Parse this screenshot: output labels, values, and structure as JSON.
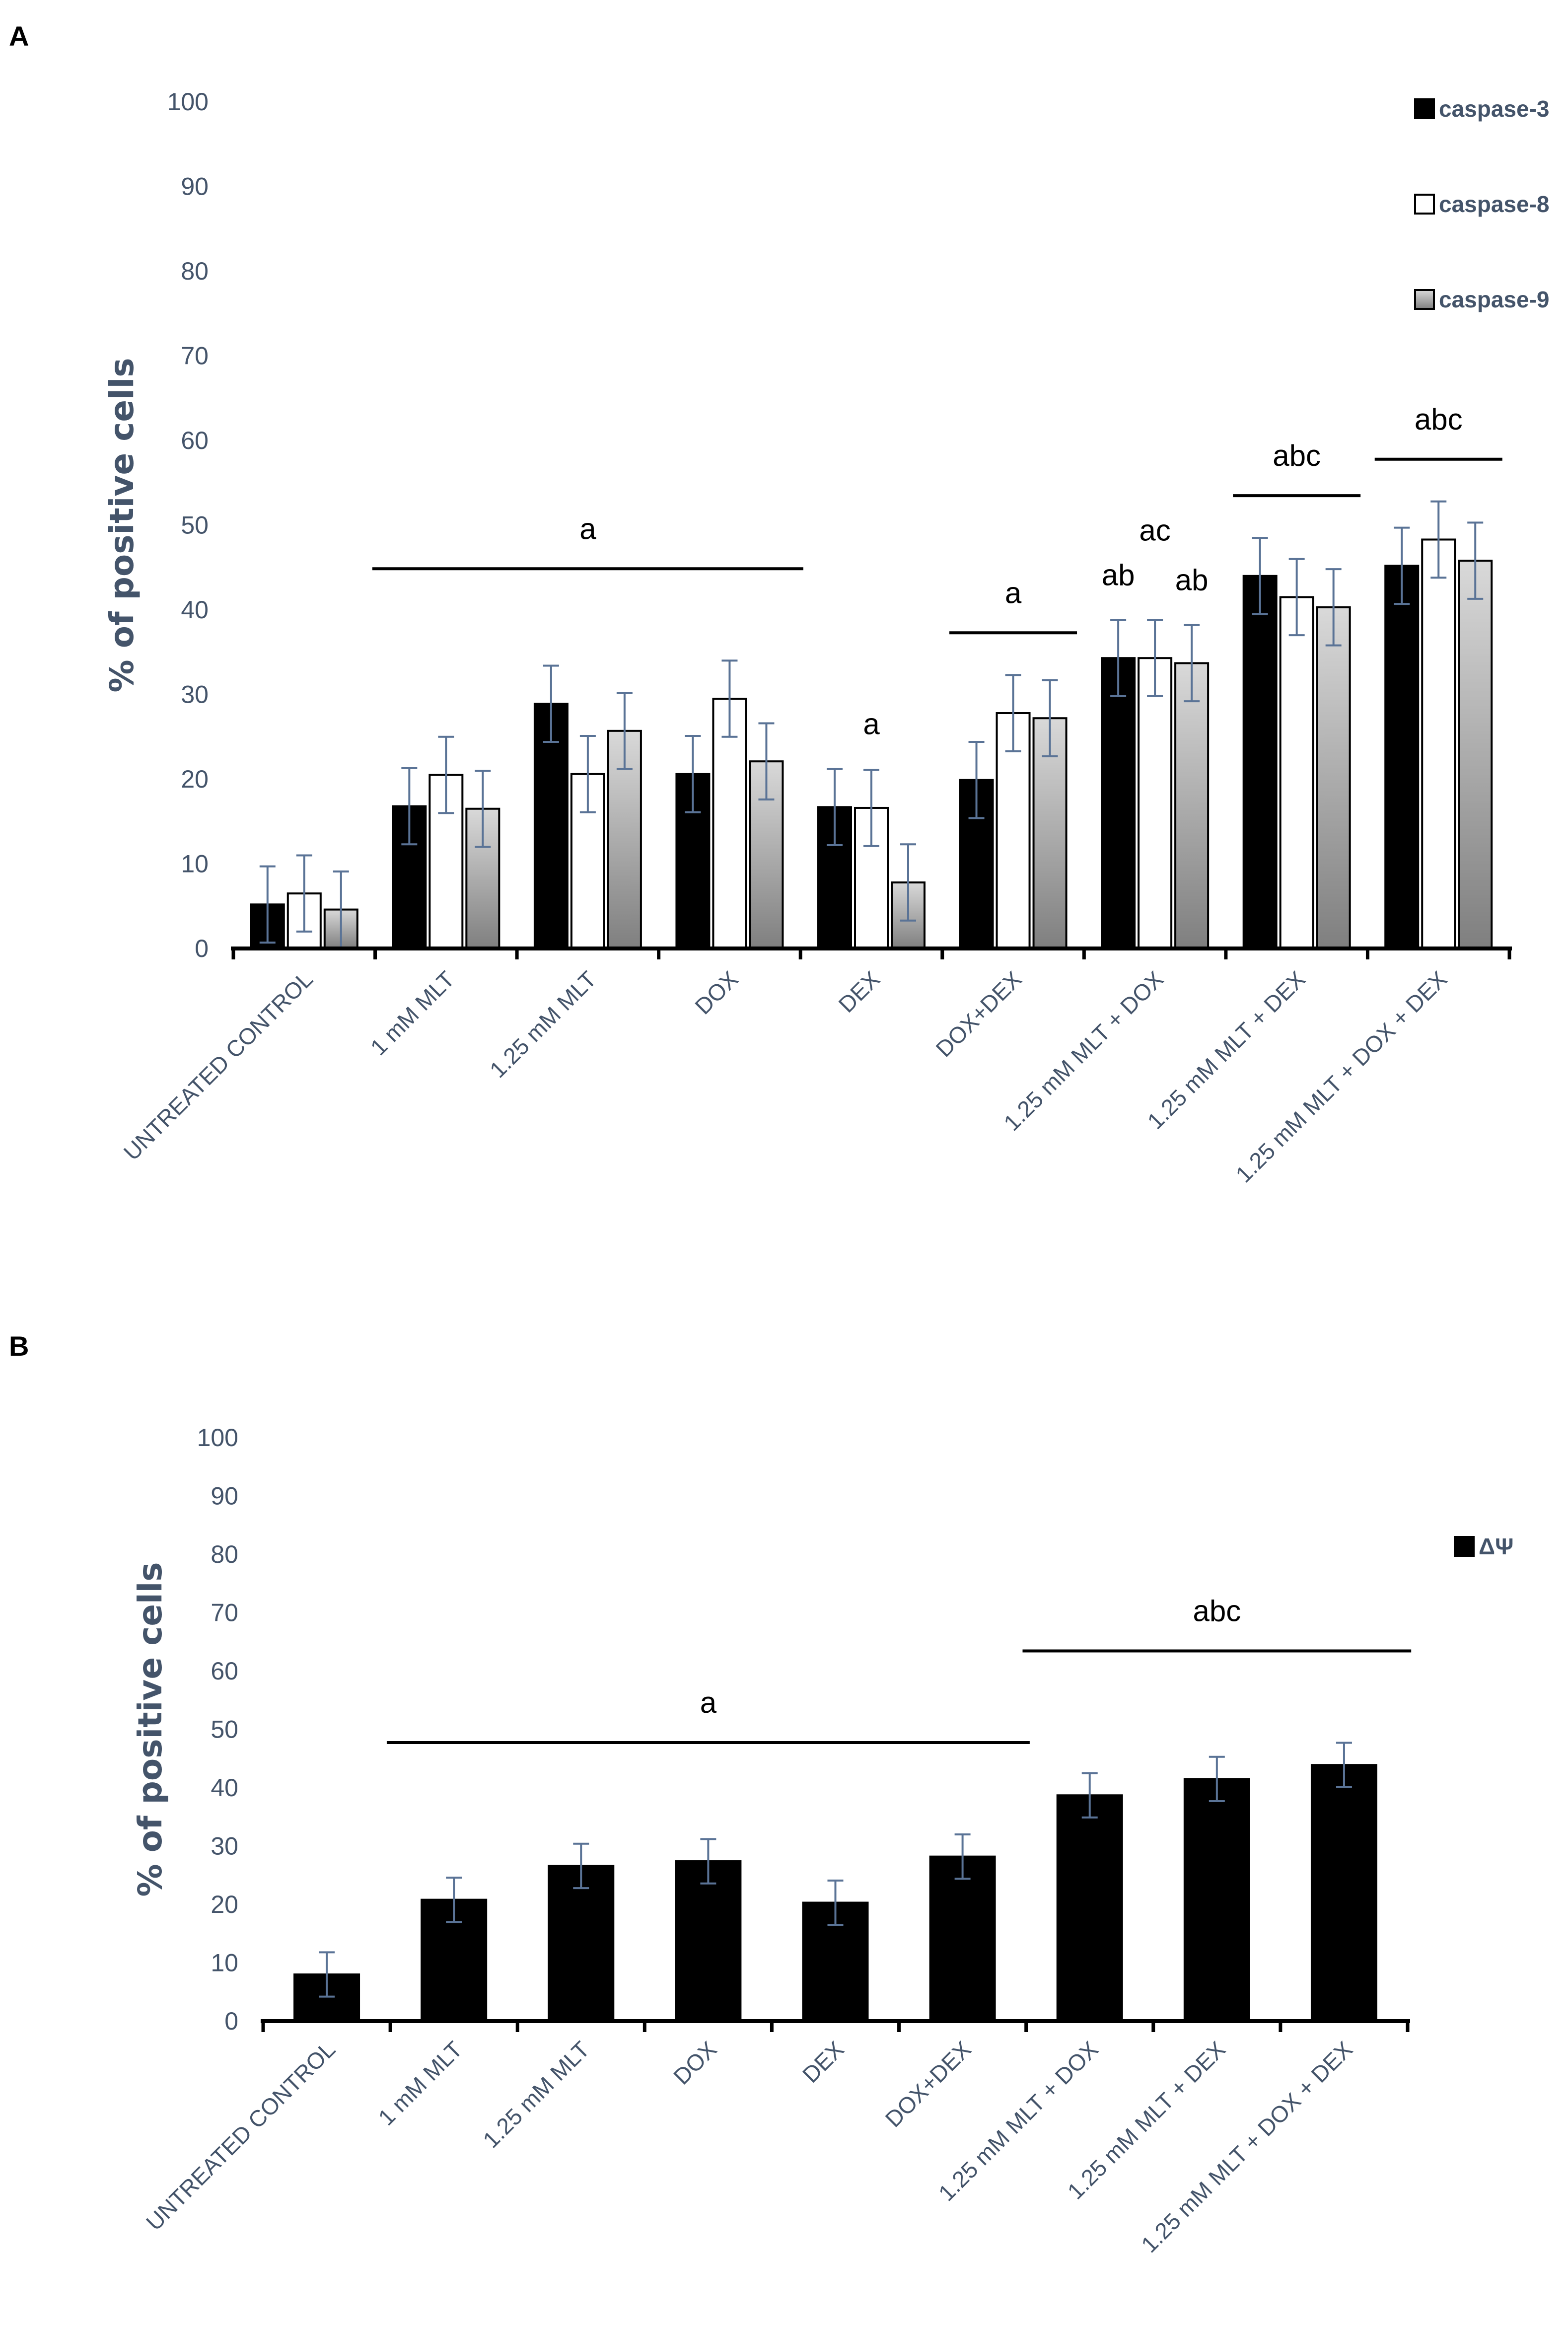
{
  "chart_data": [
    {
      "panel": "A",
      "type": "bar",
      "ylabel": "% of positive cells",
      "xlabel": "",
      "ylim": [
        0,
        100
      ],
      "yticks": [
        "0",
        "10",
        "20",
        "30",
        "40",
        "50",
        "60",
        "70",
        "80",
        "90",
        "100"
      ],
      "grid": false,
      "legend_placement": "top-right",
      "categories": [
        "UNTREATED CONTROL",
        "1 mM MLT",
        "1.25 mM MLT",
        "DOX",
        "DEX",
        "DOX+DEX",
        "1.25 mM MLT + DOX",
        "1.25 mM MLT + DEX",
        "1.25 mM MLT + DOX + DEX"
      ],
      "series": [
        {
          "name": "caspase-3",
          "color": "#000000",
          "fill": "solid",
          "values": [
            5.2,
            16.8,
            28.9,
            20.6,
            16.7,
            19.9,
            34.3,
            44.0,
            45.2
          ],
          "errors": [
            4.5,
            4.5,
            4.5,
            4.5,
            4.5,
            4.5,
            4.5,
            4.5,
            4.5
          ]
        },
        {
          "name": "caspase-8",
          "color": "#ffffff",
          "fill": "outline",
          "values": [
            6.5,
            20.5,
            20.6,
            29.5,
            16.6,
            27.8,
            34.3,
            41.5,
            48.3
          ],
          "errors": [
            4.5,
            4.5,
            4.5,
            4.5,
            4.5,
            4.5,
            4.5,
            4.5,
            4.5
          ]
        },
        {
          "name": "caspase-9",
          "color": "#a6a6a6",
          "fill": "gradient",
          "values": [
            4.6,
            16.5,
            25.7,
            22.1,
            7.8,
            27.2,
            33.7,
            40.3,
            45.8
          ],
          "errors": [
            4.5,
            4.5,
            4.5,
            4.5,
            4.5,
            4.5,
            4.5,
            4.5,
            4.5
          ]
        }
      ],
      "annotations": [
        {
          "text": "a",
          "over": [
            1,
            3
          ]
        },
        {
          "text": "a",
          "over": [
            4,
            4
          ]
        },
        {
          "text": "a",
          "over": [
            5,
            5
          ]
        },
        {
          "text": "ab",
          "over": [
            6,
            6
          ],
          "series": 0
        },
        {
          "text": "ac",
          "over": [
            6,
            6
          ],
          "series": 1
        },
        {
          "text": "ab",
          "over": [
            6,
            6
          ],
          "series": 2
        },
        {
          "text": "abc",
          "over": [
            7,
            7
          ]
        },
        {
          "text": "abc",
          "over": [
            8,
            8
          ]
        }
      ]
    },
    {
      "panel": "B",
      "type": "bar",
      "ylabel": "% of positive cells",
      "xlabel": "",
      "ylim": [
        0,
        100
      ],
      "yticks": [
        "0",
        "10",
        "20",
        "30",
        "40",
        "50",
        "60",
        "70",
        "80",
        "90",
        "100"
      ],
      "grid": false,
      "legend_placement": "top-right",
      "categories": [
        "UNTREATED CONTROL",
        "1 mM MLT",
        "1.25 mM MLT",
        "DOX",
        "DEX",
        "DOX+DEX",
        "1.25 mM MLT + DOX",
        "1.25 mM MLT + DEX",
        "1.25 mM MLT + DOX + DEX"
      ],
      "series": [
        {
          "name": "ΔΨ",
          "color": "#000000",
          "fill": "solid",
          "values": [
            8.0,
            20.8,
            26.6,
            27.4,
            20.3,
            28.2,
            38.7,
            41.5,
            43.9
          ],
          "errors": [
            3.8,
            3.8,
            3.8,
            3.8,
            3.8,
            3.8,
            3.8,
            3.8,
            3.8
          ]
        }
      ],
      "annotations": [
        {
          "text": "a",
          "over": [
            1,
            5
          ]
        },
        {
          "text": "abc",
          "over": [
            6,
            8
          ]
        }
      ]
    }
  ]
}
